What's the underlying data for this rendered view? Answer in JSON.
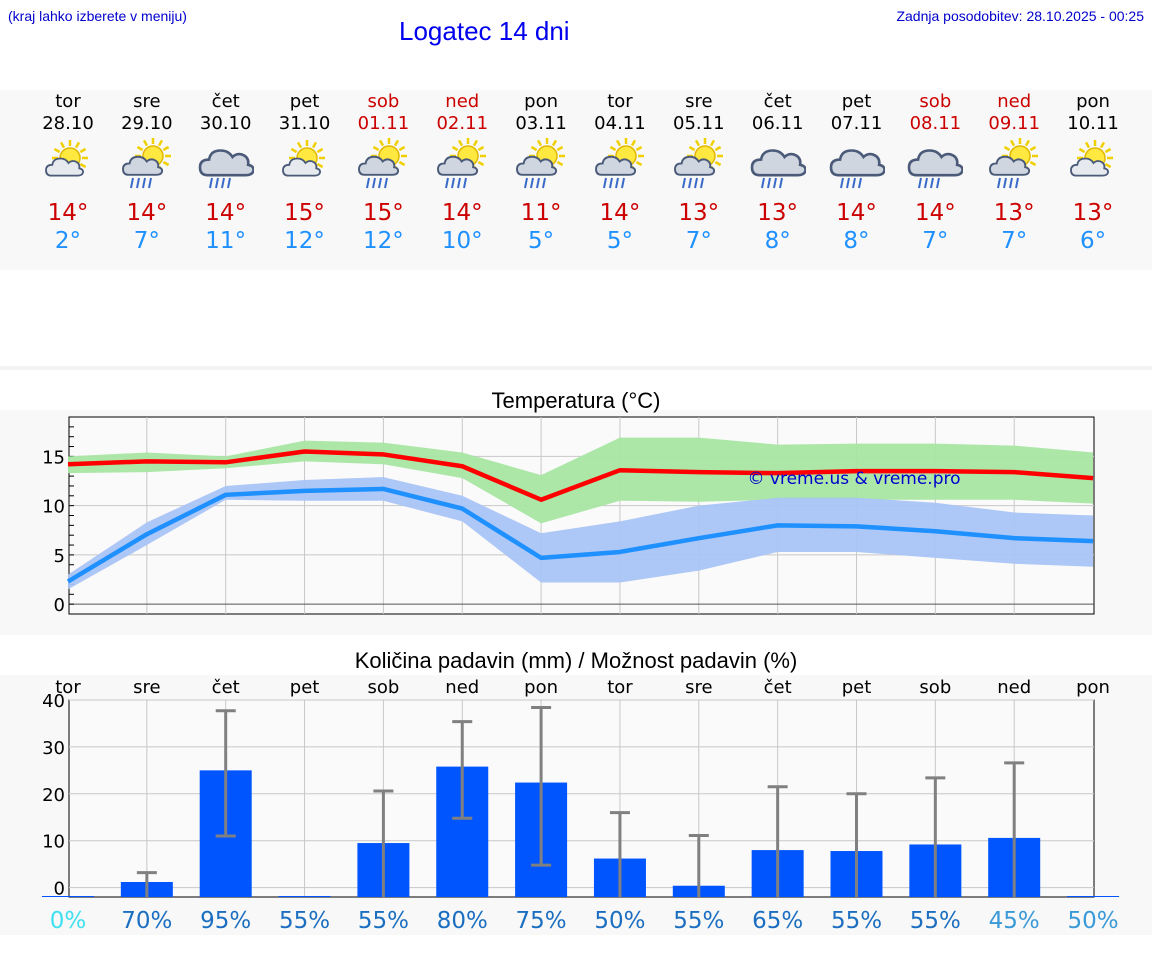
{
  "header": {
    "left_note": "(kraj lahko izberete v meniju)",
    "title": "Logatec 14 dni",
    "updated": "Zadnja posodobitev: 28.10.2025 - 00:25"
  },
  "days": [
    {
      "name": "tor",
      "date": "28.10",
      "weekend": false,
      "icon": "sun-cloud-icon",
      "tmax": "14°",
      "tmin": "2°"
    },
    {
      "name": "sre",
      "date": "29.10",
      "weekend": false,
      "icon": "sun-cloud-rain-icon",
      "tmax": "14°",
      "tmin": "7°"
    },
    {
      "name": "čet",
      "date": "30.10",
      "weekend": false,
      "icon": "cloud-rain-icon",
      "tmax": "14°",
      "tmin": "11°"
    },
    {
      "name": "pet",
      "date": "31.10",
      "weekend": false,
      "icon": "sun-cloud-icon",
      "tmax": "15°",
      "tmin": "12°"
    },
    {
      "name": "sob",
      "date": "01.11",
      "weekend": true,
      "icon": "sun-cloud-rain-icon",
      "tmax": "15°",
      "tmin": "12°"
    },
    {
      "name": "ned",
      "date": "02.11",
      "weekend": true,
      "icon": "sun-cloud-rain-icon",
      "tmax": "14°",
      "tmin": "10°"
    },
    {
      "name": "pon",
      "date": "03.11",
      "weekend": false,
      "icon": "sun-cloud-rain-icon",
      "tmax": "11°",
      "tmin": "5°"
    },
    {
      "name": "tor",
      "date": "04.11",
      "weekend": false,
      "icon": "sun-cloud-rain-icon",
      "tmax": "14°",
      "tmin": "5°"
    },
    {
      "name": "sre",
      "date": "05.11",
      "weekend": false,
      "icon": "sun-cloud-rain-icon",
      "tmax": "13°",
      "tmin": "7°"
    },
    {
      "name": "čet",
      "date": "06.11",
      "weekend": false,
      "icon": "cloud-rain-icon",
      "tmax": "13°",
      "tmin": "8°"
    },
    {
      "name": "pet",
      "date": "07.11",
      "weekend": false,
      "icon": "cloud-rain-icon",
      "tmax": "14°",
      "tmin": "8°"
    },
    {
      "name": "sob",
      "date": "08.11",
      "weekend": true,
      "icon": "cloud-rain-icon",
      "tmax": "14°",
      "tmin": "7°"
    },
    {
      "name": "ned",
      "date": "09.11",
      "weekend": true,
      "icon": "sun-cloud-rain-icon",
      "tmax": "13°",
      "tmin": "7°"
    },
    {
      "name": "pon",
      "date": "10.11",
      "weekend": false,
      "icon": "sun-cloud-icon",
      "tmax": "13°",
      "tmin": "6°"
    }
  ],
  "colors": {
    "max_line": "#ff0000",
    "max_band": "#a8e6a3",
    "min_line": "#1e90ff",
    "min_band": "#a9c4f5",
    "bar": "#0055ff",
    "error": "#808080",
    "grid": "#c8c8c8"
  },
  "chart_data": [
    {
      "type": "line",
      "title": "Temperatura (°C)",
      "watermark": "© vreme.us & vreme.pro",
      "x": [
        "28.10",
        "29.10",
        "30.10",
        "31.10",
        "01.11",
        "02.11",
        "03.11",
        "04.11",
        "05.11",
        "06.11",
        "07.11",
        "08.11",
        "09.11",
        "10.11"
      ],
      "ylim": [
        -1,
        19
      ],
      "yticks": [
        0,
        5,
        10,
        15
      ],
      "grid": true,
      "series": [
        {
          "values": [
            14.2,
            14.5,
            14.4,
            15.5,
            15.2,
            14.0,
            10.6,
            13.6,
            13.4,
            13.3,
            13.5,
            13.5,
            13.4,
            12.8
          ],
          "band_low": [
            13.3,
            13.4,
            13.8,
            14.5,
            14.2,
            12.8,
            8.2,
            10.5,
            10.4,
            10.6,
            10.6,
            10.6,
            10.6,
            10.2
          ],
          "band_high": [
            15.0,
            15.4,
            15.0,
            16.6,
            16.4,
            15.4,
            13.1,
            16.9,
            16.9,
            16.2,
            16.3,
            16.3,
            16.1,
            15.4
          ]
        },
        {
          "values": [
            2.3,
            7.1,
            11.1,
            11.5,
            11.7,
            9.7,
            4.7,
            5.3,
            6.7,
            8.0,
            7.9,
            7.4,
            6.7,
            6.4
          ],
          "band_low": [
            1.5,
            6.0,
            10.6,
            10.5,
            10.5,
            8.4,
            2.2,
            2.2,
            3.4,
            5.3,
            5.3,
            4.7,
            4.1,
            3.8
          ],
          "band_high": [
            3.0,
            8.3,
            12.0,
            12.6,
            12.9,
            11.0,
            7.2,
            8.4,
            10.0,
            10.8,
            10.8,
            10.3,
            9.3,
            9.0
          ]
        }
      ]
    },
    {
      "type": "bar",
      "title": "Količina padavin (mm) / Možnost padavin (%)",
      "categories": [
        "tor",
        "sre",
        "čet",
        "pet",
        "sob",
        "ned",
        "pon",
        "tor",
        "sre",
        "čet",
        "pet",
        "sob",
        "ned",
        "pon"
      ],
      "values": [
        0,
        1.2,
        25.0,
        0,
        9.5,
        25.8,
        22.4,
        6.2,
        0.4,
        8.0,
        7.8,
        9.2,
        10.6,
        0
      ],
      "error_low": [
        0,
        0,
        11,
        0,
        0,
        14.8,
        4.8,
        0,
        0,
        0,
        0,
        0,
        0,
        0
      ],
      "error_high": [
        0,
        3.2,
        37.7,
        0,
        20.6,
        35.4,
        38.4,
        16.0,
        11.1,
        21.5,
        20.0,
        23.4,
        26.6,
        0
      ],
      "ylim": [
        -2,
        40
      ],
      "yticks": [
        0,
        10,
        20,
        30,
        40
      ],
      "grid": true,
      "probability": [
        "0%",
        "70%",
        "95%",
        "55%",
        "55%",
        "80%",
        "75%",
        "50%",
        "55%",
        "65%",
        "55%",
        "55%",
        "45%",
        "50%"
      ],
      "probability_colors": [
        "#40e0f0",
        "#1c6fc0",
        "#1c6fc0",
        "#1c6fc0",
        "#1c6fc0",
        "#1c6fc0",
        "#1c6fc0",
        "#1c6fc0",
        "#1c6fc0",
        "#1c6fc0",
        "#1c6fc0",
        "#1c6fc0",
        "#3a9ad8",
        "#3a9ad8"
      ]
    }
  ]
}
